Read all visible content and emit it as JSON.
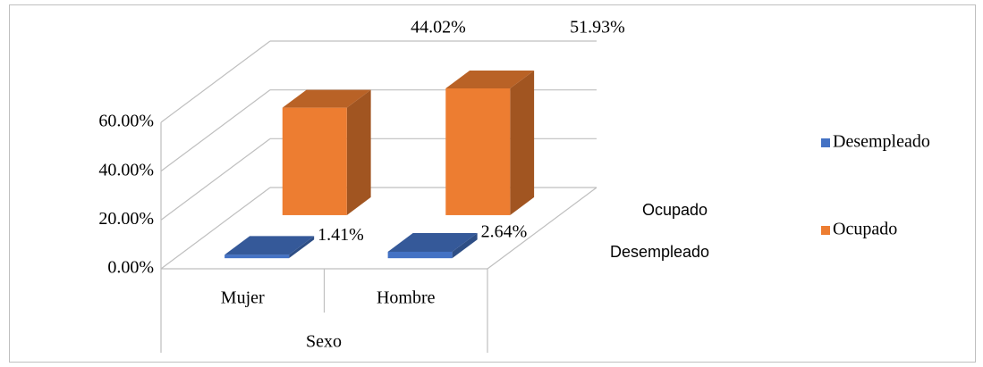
{
  "chart_data": {
    "type": "bar3d",
    "x_label": "Sexo",
    "categories": [
      "Mujer",
      "Hombre"
    ],
    "series": [
      {
        "name": "Desempleado",
        "color": "#4472c4",
        "values": [
          1.41,
          2.64
        ],
        "value_labels": [
          "1.41%",
          "2.64%"
        ]
      },
      {
        "name": "Ocupado",
        "color": "#ed7d31",
        "values": [
          44.02,
          51.93
        ],
        "value_labels": [
          "44.02%",
          "51.93%"
        ]
      }
    ],
    "ylim": [
      0,
      60
    ],
    "yticks": [
      {
        "value": 0,
        "label": "0.00%"
      },
      {
        "value": 20,
        "label": "20.00%"
      },
      {
        "value": 40,
        "label": "40.00%"
      },
      {
        "value": 60,
        "label": "60.00%"
      }
    ],
    "grid": true,
    "legend": "right"
  }
}
